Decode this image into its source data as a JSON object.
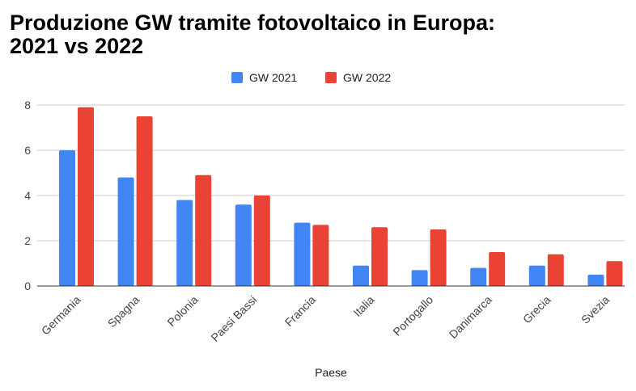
{
  "chart_data": {
    "type": "bar",
    "title_lines": [
      "Produzione GW tramite fotovoltaico in Europa:",
      "2021 vs 2022"
    ],
    "xlabel": "Paese",
    "ylabel": "",
    "categories": [
      "Germania",
      "Spagna",
      "Polonia",
      "Paesi Bassi",
      "Francia",
      "Italia",
      "Portogallo",
      "Danimarca",
      "Grecia",
      "Svezia"
    ],
    "series": [
      {
        "name": "GW 2021",
        "color": "#4285f4",
        "values": [
          6.0,
          4.8,
          3.8,
          3.6,
          2.8,
          0.9,
          0.7,
          0.8,
          0.9,
          0.5
        ]
      },
      {
        "name": "GW 2022",
        "color": "#ea4335",
        "values": [
          7.9,
          7.5,
          4.9,
          4.0,
          2.7,
          2.6,
          2.5,
          1.5,
          1.4,
          1.1
        ]
      }
    ],
    "ylim": [
      0,
      8
    ],
    "yticks": [
      0,
      2,
      4,
      6,
      8
    ],
    "grid": true,
    "legend_position": "top-center"
  }
}
